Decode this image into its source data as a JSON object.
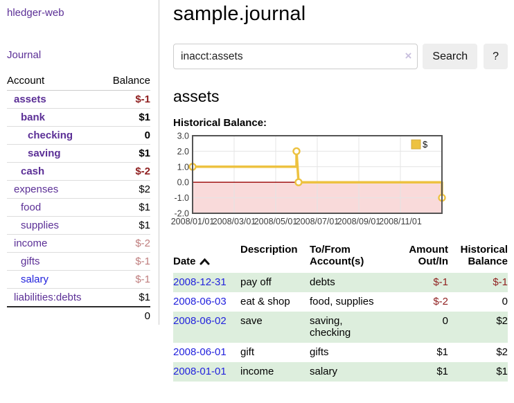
{
  "colors": {
    "purple_link": "#5b2f96",
    "blue_link": "#2222dd",
    "negative_strong": "#8f1f1f",
    "negative_muted": "#bf7d7d",
    "row_alt_green": "#ddeedd",
    "chart_line_gold": "#edc240",
    "chart_negative_region": "#f9dada",
    "chart_zero_line": "#990000",
    "button_bg": "#eeeeee",
    "divider": "#cccccc"
  },
  "sidebar": {
    "app_title": "hledger-web",
    "nav_journal": "Journal",
    "accounts_table": {
      "account_header": "Account",
      "balance_header": "Balance",
      "rows": [
        {
          "name": "assets",
          "depth": 1,
          "bold": true,
          "link": "purple",
          "balance": "$-1",
          "balance_tone": "negative_strong"
        },
        {
          "name": "bank",
          "depth": 2,
          "bold": true,
          "link": "purple",
          "balance": "$1",
          "balance_tone": "normal"
        },
        {
          "name": "checking",
          "depth": 3,
          "bold": true,
          "link": "purple",
          "balance": "0",
          "balance_tone": "normal"
        },
        {
          "name": "saving",
          "depth": 3,
          "bold": true,
          "link": "purple",
          "balance": "$1",
          "balance_tone": "normal"
        },
        {
          "name": "cash",
          "depth": 2,
          "bold": true,
          "link": "purple",
          "balance": "$-2",
          "balance_tone": "negative_strong"
        },
        {
          "name": "expenses",
          "depth": 1,
          "bold": false,
          "link": "purple",
          "balance": "$2",
          "balance_tone": "normal"
        },
        {
          "name": "food",
          "depth": 2,
          "bold": false,
          "link": "purple",
          "balance": "$1",
          "balance_tone": "normal"
        },
        {
          "name": "supplies",
          "depth": 2,
          "bold": false,
          "link": "purple",
          "balance": "$1",
          "balance_tone": "normal"
        },
        {
          "name": "income",
          "depth": 1,
          "bold": false,
          "link": "purple",
          "balance": "$-2",
          "balance_tone": "negative_muted"
        },
        {
          "name": "gifts",
          "depth": 2,
          "bold": false,
          "link": "purple",
          "balance": "$-1",
          "balance_tone": "negative_muted"
        },
        {
          "name": "salary",
          "depth": 2,
          "bold": false,
          "link": "blue",
          "balance": "$-1",
          "balance_tone": "negative_muted"
        },
        {
          "name": "liabilities:debts",
          "depth": 1,
          "bold": false,
          "link": "purple",
          "balance": "$1",
          "balance_tone": "normal"
        }
      ],
      "total": "0"
    }
  },
  "main": {
    "title": "sample.journal",
    "search": {
      "value": "inacct:assets",
      "clear_icon": "×",
      "button_label": "Search",
      "help_label": "?"
    },
    "account_heading": "assets",
    "chart_label": "Historical Balance:"
  },
  "chart_data": {
    "type": "line",
    "title": "Historical Balance:",
    "legend": {
      "label": "$",
      "position": "top-right"
    },
    "data_points": [
      {
        "date": "2008-01-01",
        "value": 1
      },
      {
        "date": "2008-06-01",
        "value": 2
      },
      {
        "date": "2008-06-03",
        "value": 0
      },
      {
        "date": "2008-12-31",
        "value": -1
      }
    ],
    "step_points_months": [
      [
        0,
        1
      ],
      [
        5,
        1
      ],
      [
        5,
        2
      ],
      [
        5.1,
        0
      ],
      [
        12,
        0
      ],
      [
        12,
        -1
      ]
    ],
    "marker_points_months": [
      [
        0,
        1
      ],
      [
        5,
        2
      ],
      [
        5.1,
        0
      ],
      [
        12,
        -1
      ]
    ],
    "xlim_months": [
      0,
      12
    ],
    "ylim": [
      -2,
      3
    ],
    "y_tick_labels": [
      "3.0",
      "2.0",
      "1.0",
      "0.0",
      "-1.0",
      "-2.0"
    ],
    "x_tick_months": [
      0,
      2,
      4,
      6,
      8,
      10
    ],
    "x_tick_labels": [
      "2008/01/01",
      "2008/03/01",
      "2008/05/01",
      "2008/07/01",
      "2008/09/01",
      "2008/11/01"
    ],
    "grid": true
  },
  "register": {
    "headers": {
      "date": "Date",
      "description": "Description",
      "accounts": "To/From\nAccount(s)",
      "amount": "Amount\nOut/In",
      "balance": "Historical\nBalance"
    },
    "rows": [
      {
        "date": "2008-12-31",
        "description": "pay off",
        "accounts": "debts",
        "amount": "$-1",
        "amount_negative": true,
        "balance": "$-1",
        "balance_negative": true,
        "highlight": true
      },
      {
        "date": "2008-06-03",
        "description": "eat & shop",
        "accounts": "food, supplies",
        "amount": "$-2",
        "amount_negative": true,
        "balance": "0",
        "balance_negative": false,
        "highlight": false
      },
      {
        "date": "2008-06-02",
        "description": "save",
        "accounts": "saving, checking",
        "amount": "0",
        "amount_negative": false,
        "balance": "$2",
        "balance_negative": false,
        "highlight": true
      },
      {
        "date": "2008-06-01",
        "description": "gift",
        "accounts": "gifts",
        "amount": "$1",
        "amount_negative": false,
        "balance": "$2",
        "balance_negative": false,
        "highlight": false
      },
      {
        "date": "2008-01-01",
        "description": "income",
        "accounts": "salary",
        "amount": "$1",
        "amount_negative": false,
        "balance": "$1",
        "balance_negative": false,
        "highlight": true
      }
    ]
  }
}
